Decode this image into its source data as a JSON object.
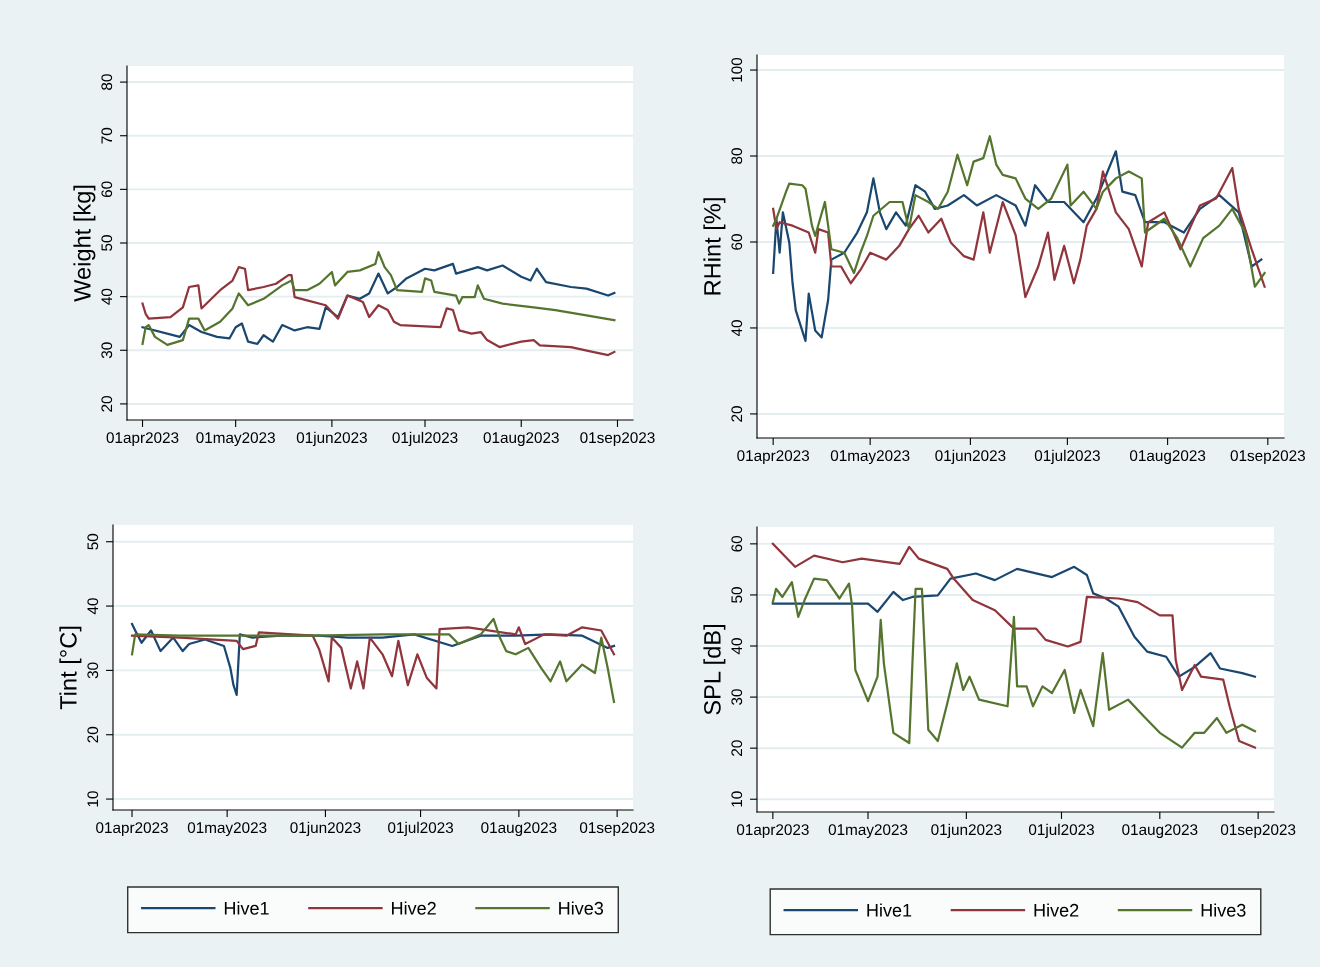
{
  "chart_data": [
    {
      "type": "line",
      "ylabel": "Weight [kg]",
      "xlim": [
        "2023-03-27",
        "2023-09-06"
      ],
      "ylim": [
        17,
        83
      ],
      "yticks": [
        20,
        30,
        40,
        50,
        60,
        70,
        80
      ],
      "xticks": [
        {
          "value": "2023-04-01",
          "label": "01apr2023"
        },
        {
          "value": "2023-05-01",
          "label": "01may2023"
        },
        {
          "value": "2023-06-01",
          "label": "01jun2023"
        },
        {
          "value": "2023-07-01",
          "label": "01jul2023"
        },
        {
          "value": "2023-08-01",
          "label": "01aug2023"
        },
        {
          "value": "2023-09-01",
          "label": "01sep2023"
        }
      ],
      "grid": "y",
      "marker": "none",
      "line_style": "solid",
      "legend": false,
      "series": [
        {
          "color": "#1a476f",
          "x": [
            "2023-04-01",
            "2023-04-13",
            "2023-04-16",
            "2023-04-20",
            "2023-04-25",
            "2023-04-29",
            "2023-05-01",
            "2023-05-03",
            "2023-05-05",
            "2023-05-08",
            "2023-05-10",
            "2023-05-13",
            "2023-05-16",
            "2023-05-20",
            "2023-05-24",
            "2023-05-28",
            "2023-05-30",
            "2023-06-03",
            "2023-06-06",
            "2023-06-10",
            "2023-06-13",
            "2023-06-16",
            "2023-06-19",
            "2023-06-22",
            "2023-06-25",
            "2023-07-01",
            "2023-07-04",
            "2023-07-10",
            "2023-07-11",
            "2023-07-18",
            "2023-07-21",
            "2023-07-26",
            "2023-08-01",
            "2023-08-04",
            "2023-08-06",
            "2023-08-09",
            "2023-08-17",
            "2023-08-22",
            "2023-08-29",
            "2023-08-31"
          ],
          "values": [
            34.3,
            32.5,
            34.7,
            33.4,
            32.5,
            32.2,
            34.3,
            35,
            31.6,
            31.2,
            32.8,
            31.6,
            34.7,
            33.7,
            34.3,
            34,
            38,
            36.2,
            40.2,
            39.6,
            40.6,
            44.3,
            40.6,
            41.8,
            43.4,
            45.2,
            44.9,
            46.1,
            44.3,
            45.5,
            44.9,
            45.8,
            43.7,
            43,
            45.2,
            42.7,
            41.8,
            41.5,
            40.2,
            40.7
          ]
        },
        {
          "color": "#90353b",
          "x": [
            "2023-04-01",
            "2023-04-02",
            "2023-04-03",
            "2023-04-10",
            "2023-04-14",
            "2023-04-16",
            "2023-04-19",
            "2023-04-20",
            "2023-04-26",
            "2023-04-30",
            "2023-05-02",
            "2023-05-04",
            "2023-05-05",
            "2023-05-10",
            "2023-05-14",
            "2023-05-18",
            "2023-05-19",
            "2023-05-20",
            "2023-05-24",
            "2023-05-30",
            "2023-06-03",
            "2023-06-06",
            "2023-06-11",
            "2023-06-13",
            "2023-06-16",
            "2023-06-19",
            "2023-06-21",
            "2023-06-23",
            "2023-07-06",
            "2023-07-08",
            "2023-07-10",
            "2023-07-12",
            "2023-07-16",
            "2023-07-19",
            "2023-07-21",
            "2023-07-25",
            "2023-08-01",
            "2023-08-05",
            "2023-08-07",
            "2023-08-17",
            "2023-08-24",
            "2023-08-29",
            "2023-08-31"
          ],
          "values": [
            38.7,
            36.8,
            35.9,
            36.2,
            38,
            41.8,
            42.1,
            37.8,
            41.2,
            43,
            45.5,
            45.2,
            41.2,
            41.8,
            42.4,
            44,
            44,
            39.9,
            39.3,
            38.4,
            35.9,
            40.2,
            39,
            36.2,
            38.4,
            37.5,
            35.3,
            34.7,
            34.3,
            37.8,
            37.5,
            33.7,
            33.1,
            33.4,
            31.9,
            30.6,
            31.6,
            31.9,
            30.9,
            30.6,
            29.7,
            29.1,
            29.7
          ]
        },
        {
          "color": "#55752f",
          "x": [
            "2023-04-01",
            "2023-04-02",
            "2023-04-03",
            "2023-04-05",
            "2023-04-09",
            "2023-04-14",
            "2023-04-16",
            "2023-04-19",
            "2023-04-21",
            "2023-04-26",
            "2023-04-30",
            "2023-05-02",
            "2023-05-05",
            "2023-05-10",
            "2023-05-16",
            "2023-05-19",
            "2023-05-20",
            "2023-05-24",
            "2023-05-28",
            "2023-06-01",
            "2023-06-02",
            "2023-06-06",
            "2023-06-10",
            "2023-06-15",
            "2023-06-16",
            "2023-06-18",
            "2023-06-20",
            "2023-06-22",
            "2023-06-30",
            "2023-07-01",
            "2023-07-03",
            "2023-07-04",
            "2023-07-11",
            "2023-07-12",
            "2023-07-13",
            "2023-07-17",
            "2023-07-18",
            "2023-07-20",
            "2023-07-26",
            "2023-08-05",
            "2023-08-12",
            "2023-08-22",
            "2023-08-31"
          ],
          "values": [
            31.2,
            34.3,
            34.7,
            32.5,
            31,
            31.9,
            35.9,
            35.9,
            33.7,
            35.3,
            37.8,
            40.6,
            38.4,
            39.6,
            42.1,
            43,
            41.2,
            41.2,
            42.4,
            44.6,
            42.1,
            44.6,
            44.9,
            46.1,
            48.3,
            45.5,
            44,
            41.2,
            40.9,
            43.4,
            43,
            40.9,
            40.2,
            38.7,
            39.9,
            39.9,
            42.1,
            39.6,
            38.7,
            38,
            37.5,
            36.5,
            35.6
          ]
        }
      ]
    },
    {
      "type": "line",
      "ylabel": "RHint [%]",
      "xlim": [
        "2023-03-27",
        "2023-09-06"
      ],
      "ylim": [
        14.4,
        103.5
      ],
      "yticks": [
        20,
        40,
        60,
        80,
        100
      ],
      "xticks": [
        {
          "value": "2023-04-01",
          "label": "01apr2023"
        },
        {
          "value": "2023-05-01",
          "label": "01may2023"
        },
        {
          "value": "2023-06-01",
          "label": "01jun2023"
        },
        {
          "value": "2023-07-01",
          "label": "01jul2023"
        },
        {
          "value": "2023-08-01",
          "label": "01aug2023"
        },
        {
          "value": "2023-09-01",
          "label": "01sep2023"
        }
      ],
      "grid": "y",
      "marker": "none",
      "line_style": "solid",
      "legend": false,
      "series": [
        {
          "color": "#1a476f",
          "x": [
            "2023-04-01",
            "2023-04-02",
            "2023-04-03",
            "2023-04-04",
            "2023-04-06",
            "2023-04-07",
            "2023-04-08",
            "2023-04-09",
            "2023-04-11",
            "2023-04-12",
            "2023-04-14",
            "2023-04-16",
            "2023-04-18",
            "2023-04-19",
            "2023-04-23",
            "2023-04-27",
            "2023-04-30",
            "2023-05-02",
            "2023-05-04",
            "2023-05-06",
            "2023-05-09",
            "2023-05-12",
            "2023-05-15",
            "2023-05-18",
            "2023-05-21",
            "2023-05-25",
            "2023-05-30",
            "2023-06-03",
            "2023-06-09",
            "2023-06-15",
            "2023-06-18",
            "2023-06-21",
            "2023-06-25",
            "2023-06-30",
            "2023-07-06",
            "2023-07-10",
            "2023-07-16",
            "2023-07-18",
            "2023-07-22",
            "2023-07-25",
            "2023-07-31",
            "2023-08-06",
            "2023-08-11",
            "2023-08-17",
            "2023-08-23",
            "2023-08-27",
            "2023-08-30"
          ],
          "values": [
            52.8,
            65.4,
            57.5,
            66.9,
            59.8,
            50.4,
            44.1,
            41.7,
            37,
            48,
            39.4,
            37.8,
            46.5,
            55.9,
            57.5,
            62.2,
            66.9,
            74.8,
            66.9,
            63,
            66.9,
            63.8,
            73.2,
            71.7,
            67.7,
            68.5,
            70.9,
            68.5,
            70.9,
            68.5,
            63.8,
            73.2,
            69.3,
            69.3,
            64.6,
            70.1,
            81.1,
            71.7,
            70.9,
            64.6,
            64.6,
            62.2,
            67.7,
            70.9,
            66.9,
            54.3,
            55.9
          ]
        },
        {
          "color": "#90353b",
          "x": [
            "2023-04-01",
            "2023-04-02",
            "2023-04-03",
            "2023-04-07",
            "2023-04-12",
            "2023-04-14",
            "2023-04-15",
            "2023-04-18",
            "2023-04-19",
            "2023-04-22",
            "2023-04-25",
            "2023-04-28",
            "2023-05-01",
            "2023-05-06",
            "2023-05-10",
            "2023-05-13",
            "2023-05-16",
            "2023-05-19",
            "2023-05-23",
            "2023-05-26",
            "2023-05-30",
            "2023-06-02",
            "2023-06-05",
            "2023-06-07",
            "2023-06-11",
            "2023-06-15",
            "2023-06-18",
            "2023-06-22",
            "2023-06-25",
            "2023-06-27",
            "2023-06-30",
            "2023-07-03",
            "2023-07-05",
            "2023-07-07",
            "2023-07-10",
            "2023-07-12",
            "2023-07-16",
            "2023-07-20",
            "2023-07-24",
            "2023-07-26",
            "2023-07-31",
            "2023-08-05",
            "2023-08-11",
            "2023-08-16",
            "2023-08-21",
            "2023-08-23",
            "2023-08-27",
            "2023-08-31"
          ],
          "values": [
            67.7,
            63,
            64.6,
            63.8,
            62.2,
            57.5,
            63,
            62.2,
            54.3,
            54.3,
            50.4,
            53.5,
            57.5,
            55.9,
            59.1,
            63,
            66.1,
            62.2,
            65.4,
            59.8,
            56.7,
            55.9,
            66.9,
            57.5,
            69.3,
            61.6,
            47.2,
            54.3,
            62.2,
            51.2,
            59.1,
            50.4,
            55.9,
            63.8,
            67.7,
            76.4,
            66.9,
            63,
            54.3,
            64.6,
            66.9,
            58.3,
            68.5,
            70.1,
            77.2,
            67.7,
            58.3,
            49.6
          ]
        },
        {
          "color": "#55752f",
          "x": [
            "2023-04-01",
            "2023-04-02",
            "2023-04-05",
            "2023-04-06",
            "2023-04-10",
            "2023-04-11",
            "2023-04-13",
            "2023-04-14",
            "2023-04-17",
            "2023-04-18",
            "2023-04-19",
            "2023-04-23",
            "2023-04-26",
            "2023-04-28",
            "2023-04-30",
            "2023-05-02",
            "2023-05-07",
            "2023-05-11",
            "2023-05-13",
            "2023-05-15",
            "2023-05-19",
            "2023-05-22",
            "2023-05-25",
            "2023-05-28",
            "2023-05-31",
            "2023-06-02",
            "2023-06-05",
            "2023-06-07",
            "2023-06-09",
            "2023-06-11",
            "2023-06-15",
            "2023-06-18",
            "2023-06-22",
            "2023-06-26",
            "2023-07-01",
            "2023-07-02",
            "2023-07-06",
            "2023-07-10",
            "2023-07-12",
            "2023-07-16",
            "2023-07-20",
            "2023-07-24",
            "2023-07-25",
            "2023-07-31",
            "2023-08-04",
            "2023-08-08",
            "2023-08-12",
            "2023-08-17",
            "2023-08-21",
            "2023-08-25",
            "2023-08-28",
            "2023-08-31"
          ],
          "values": [
            63.8,
            65.4,
            71.7,
            73.6,
            73.2,
            72.4,
            63.8,
            61.4,
            69.3,
            63.8,
            58.3,
            57.5,
            52.8,
            57.5,
            61.4,
            66.1,
            69.3,
            69.3,
            63,
            70.9,
            69.3,
            67.7,
            71.7,
            80.3,
            73.2,
            78.7,
            79.5,
            84.6,
            78,
            75.6,
            74.8,
            70.1,
            67.7,
            70.1,
            78,
            68.5,
            71.7,
            67.7,
            71.7,
            74.8,
            76.4,
            74.8,
            62.2,
            65.4,
            60.9,
            54.3,
            60.9,
            63.8,
            67.7,
            62.2,
            49.6,
            52.8
          ]
        }
      ]
    },
    {
      "type": "line",
      "ylabel": "Tint [°C]",
      "xlim": [
        "2023-03-26",
        "2023-09-06"
      ],
      "ylim": [
        8.3,
        52.6
      ],
      "yticks": [
        10,
        20,
        30,
        40,
        50
      ],
      "xticks": [
        {
          "value": "2023-04-01",
          "label": "01apr2023"
        },
        {
          "value": "2023-05-01",
          "label": "01may2023"
        },
        {
          "value": "2023-06-01",
          "label": "01jun2023"
        },
        {
          "value": "2023-07-01",
          "label": "01jul2023"
        },
        {
          "value": "2023-08-01",
          "label": "01aug2023"
        },
        {
          "value": "2023-09-01",
          "label": "01sep2023"
        }
      ],
      "grid": "y",
      "marker": "none",
      "line_style": "solid",
      "legend": "bottom",
      "series": [
        {
          "name": "Hive1",
          "color": "#1a476f",
          "x": [
            "2023-04-01",
            "2023-04-02",
            "2023-04-04",
            "2023-04-07",
            "2023-04-10",
            "2023-04-14",
            "2023-04-17",
            "2023-04-19",
            "2023-04-24",
            "2023-04-30",
            "2023-05-02",
            "2023-05-03",
            "2023-05-04",
            "2023-05-05",
            "2023-05-09",
            "2023-05-18",
            "2023-05-30",
            "2023-06-08",
            "2023-06-19",
            "2023-06-29",
            "2023-07-11",
            "2023-07-20",
            "2023-07-31",
            "2023-08-11",
            "2023-08-21",
            "2023-08-29",
            "2023-08-31"
          ],
          "values": [
            37.2,
            36.2,
            34.3,
            36.2,
            33,
            35.1,
            33,
            34.1,
            34.8,
            33.8,
            30.4,
            27.7,
            26.2,
            35.6,
            35.1,
            35.4,
            35.4,
            35.1,
            35.1,
            35.6,
            33.8,
            35.4,
            35.4,
            35.6,
            35.4,
            33.5,
            33.8
          ]
        },
        {
          "name": "Hive2",
          "color": "#90353b",
          "x": [
            "2023-04-01",
            "2023-04-16",
            "2023-05-04",
            "2023-05-06",
            "2023-05-10",
            "2023-05-11",
            "2023-05-28",
            "2023-05-30",
            "2023-06-02",
            "2023-06-03",
            "2023-06-06",
            "2023-06-09",
            "2023-06-11",
            "2023-06-13",
            "2023-06-15",
            "2023-06-19",
            "2023-06-22",
            "2023-06-24",
            "2023-06-27",
            "2023-06-30",
            "2023-07-03",
            "2023-07-06",
            "2023-07-07",
            "2023-07-16",
            "2023-07-31",
            "2023-08-01",
            "2023-08-03",
            "2023-08-09",
            "2023-08-16",
            "2023-08-21",
            "2023-08-27",
            "2023-08-31"
          ],
          "values": [
            35.4,
            35.1,
            34.6,
            33.3,
            33.8,
            35.9,
            35.4,
            33.3,
            28.3,
            35.1,
            33.5,
            27.2,
            31.4,
            27.2,
            35.1,
            32.5,
            29.1,
            34.6,
            27.7,
            32.5,
            28.8,
            27.2,
            36.4,
            36.7,
            35.6,
            36.7,
            34.1,
            35.6,
            35.4,
            36.7,
            36.2,
            32.5
          ]
        },
        {
          "name": "Hive3",
          "color": "#55752f",
          "x": [
            "2023-04-01",
            "2023-04-02",
            "2023-04-16",
            "2023-05-07",
            "2023-05-28",
            "2023-06-19",
            "2023-07-10",
            "2023-07-13",
            "2023-07-20",
            "2023-07-24",
            "2023-07-26",
            "2023-07-28",
            "2023-07-31",
            "2023-08-04",
            "2023-08-08",
            "2023-08-11",
            "2023-08-14",
            "2023-08-16",
            "2023-08-21",
            "2023-08-25",
            "2023-08-27",
            "2023-08-29",
            "2023-08-31"
          ],
          "values": [
            32.5,
            35.6,
            35.4,
            35.4,
            35.4,
            35.6,
            35.6,
            34.1,
            35.6,
            38,
            35.1,
            33,
            32.5,
            33.5,
            30.4,
            28.3,
            31.4,
            28.3,
            30.9,
            29.6,
            35.1,
            30.4,
            25.1
          ]
        }
      ]
    },
    {
      "type": "line",
      "ylabel": "SPL [dB]",
      "xlim": [
        "2023-03-27",
        "2023-09-06"
      ],
      "ylim": [
        7.5,
        63.3
      ],
      "yticks": [
        10,
        20,
        30,
        40,
        50,
        60
      ],
      "xticks": [
        {
          "value": "2023-04-01",
          "label": "01apr2023"
        },
        {
          "value": "2023-05-01",
          "label": "01may2023"
        },
        {
          "value": "2023-06-01",
          "label": "01jun2023"
        },
        {
          "value": "2023-07-01",
          "label": "01jul2023"
        },
        {
          "value": "2023-08-01",
          "label": "01aug2023"
        },
        {
          "value": "2023-09-01",
          "label": "01sep2023"
        }
      ],
      "grid": "y",
      "marker": "none",
      "line_style": "solid",
      "legend": "bottom",
      "series": [
        {
          "name": "Hive1",
          "color": "#1a476f",
          "x": [
            "2023-04-01",
            "2023-05-01",
            "2023-05-04",
            "2023-05-09",
            "2023-05-12",
            "2023-05-15",
            "2023-05-23",
            "2023-05-27",
            "2023-06-04",
            "2023-06-10",
            "2023-06-17",
            "2023-06-28",
            "2023-07-05",
            "2023-07-09",
            "2023-07-11",
            "2023-07-15",
            "2023-07-19",
            "2023-07-24",
            "2023-07-28",
            "2023-08-03",
            "2023-08-07",
            "2023-08-12",
            "2023-08-17",
            "2023-08-20",
            "2023-08-27",
            "2023-08-31"
          ],
          "values": [
            48.3,
            48.3,
            46.7,
            50.6,
            49,
            49.6,
            49.9,
            53.2,
            54.2,
            52.9,
            55.1,
            53.5,
            55.5,
            53.9,
            50.3,
            49.3,
            47.7,
            41.8,
            38.9,
            37.9,
            34,
            35.9,
            38.6,
            35.6,
            34.7,
            34
          ]
        },
        {
          "name": "Hive2",
          "color": "#90353b",
          "x": [
            "2023-04-01",
            "2023-04-08",
            "2023-04-14",
            "2023-04-23",
            "2023-04-29",
            "2023-05-11",
            "2023-05-14",
            "2023-05-17",
            "2023-05-26",
            "2023-05-28",
            "2023-06-03",
            "2023-06-10",
            "2023-06-16",
            "2023-06-23",
            "2023-06-26",
            "2023-07-03",
            "2023-07-07",
            "2023-07-09",
            "2023-07-19",
            "2023-07-25",
            "2023-08-01",
            "2023-08-05",
            "2023-08-06",
            "2023-08-08",
            "2023-08-12",
            "2023-08-14",
            "2023-08-21",
            "2023-08-23",
            "2023-08-26",
            "2023-08-31"
          ],
          "values": [
            60,
            55.5,
            57.7,
            56.4,
            57.1,
            56.1,
            59.4,
            57.1,
            55.1,
            53.2,
            49,
            47,
            43.4,
            43.4,
            41.2,
            39.9,
            40.8,
            49.6,
            49.3,
            48.6,
            46,
            46,
            37.3,
            31.4,
            36.3,
            34,
            33.4,
            28.2,
            21.4,
            20.1
          ]
        },
        {
          "name": "Hive3",
          "color": "#55752f",
          "x": [
            "2023-04-01",
            "2023-04-02",
            "2023-04-04",
            "2023-04-07",
            "2023-04-09",
            "2023-04-11",
            "2023-04-14",
            "2023-04-18",
            "2023-04-22",
            "2023-04-25",
            "2023-04-26",
            "2023-04-27",
            "2023-05-01",
            "2023-05-04",
            "2023-05-05",
            "2023-05-06",
            "2023-05-09",
            "2023-05-14",
            "2023-05-15",
            "2023-05-16",
            "2023-05-18",
            "2023-05-20",
            "2023-05-23",
            "2023-05-26",
            "2023-05-29",
            "2023-05-31",
            "2023-06-02",
            "2023-06-05",
            "2023-06-14",
            "2023-06-16",
            "2023-06-17",
            "2023-06-20",
            "2023-06-22",
            "2023-06-25",
            "2023-06-28",
            "2023-07-02",
            "2023-07-05",
            "2023-07-07",
            "2023-07-11",
            "2023-07-14",
            "2023-07-16",
            "2023-07-22",
            "2023-07-27",
            "2023-08-01",
            "2023-08-08",
            "2023-08-12",
            "2023-08-15",
            "2023-08-19",
            "2023-08-22",
            "2023-08-27",
            "2023-08-31"
          ],
          "values": [
            48.6,
            51.2,
            49.6,
            52.5,
            45.7,
            49,
            53.2,
            52.9,
            49.3,
            52.2,
            47.7,
            35.3,
            29.2,
            34,
            45.1,
            36.6,
            23,
            21,
            36.6,
            51.2,
            51.2,
            23.6,
            21.4,
            28.8,
            36.6,
            31.4,
            34,
            29.5,
            28.2,
            45.7,
            32.1,
            32.1,
            28.2,
            32.1,
            30.8,
            35.3,
            26.9,
            31.4,
            24.3,
            38.6,
            27.5,
            29.5,
            26.2,
            23,
            20.1,
            23,
            23,
            25.9,
            23,
            24.6,
            23.3
          ]
        }
      ]
    }
  ]
}
